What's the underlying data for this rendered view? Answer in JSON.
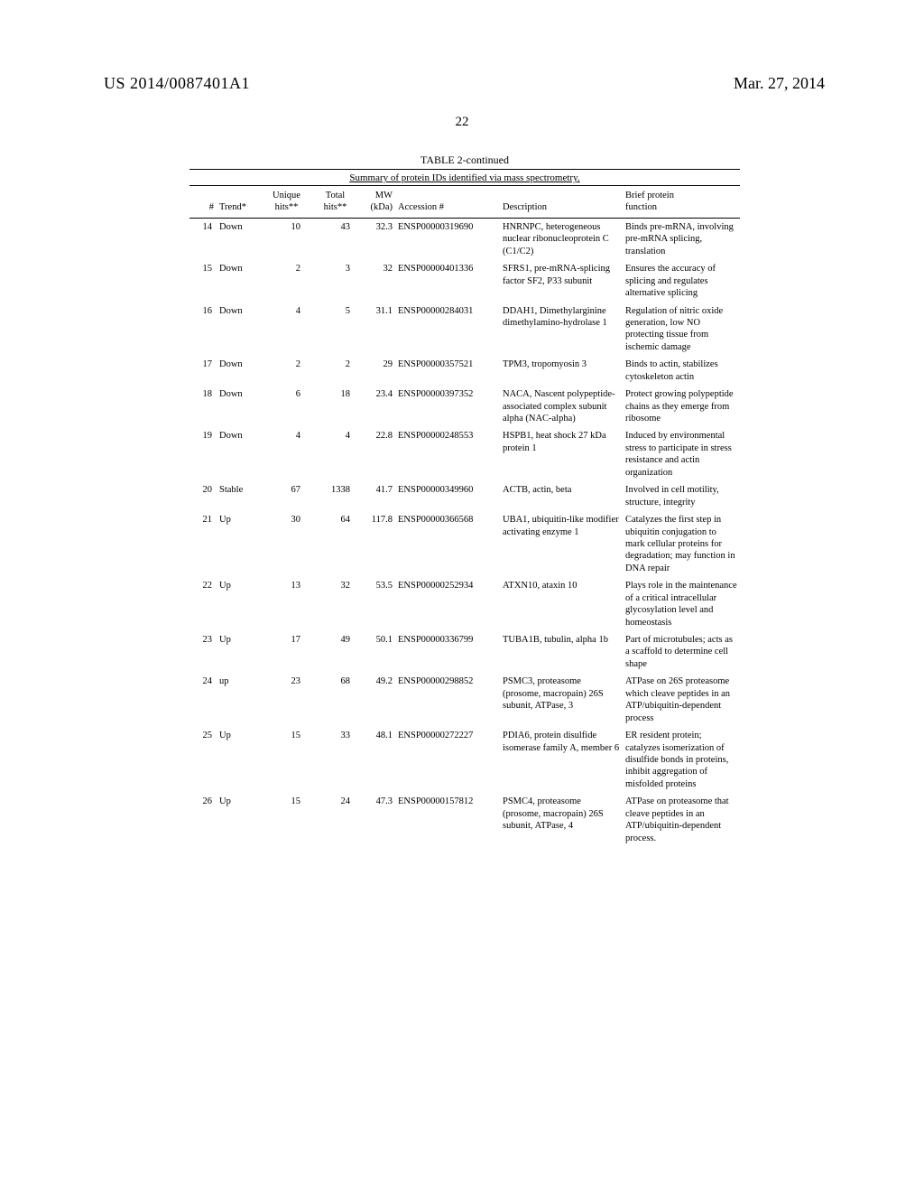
{
  "header": {
    "left": "US 2014/0087401A1",
    "right": "Mar. 27, 2014",
    "page": "22"
  },
  "table": {
    "title": "TABLE 2-continued",
    "subtitle": "Summary of protein IDs identified via mass spectrometry.",
    "columns": {
      "num": "#",
      "trend": "Trend*",
      "unique": "Unique\nhits**",
      "total": "Total\nhits**",
      "mw": "MW\n(kDa)",
      "accession": "Accession #",
      "description": "Description",
      "function": "Brief protein\nfunction"
    },
    "rows": [
      {
        "num": "14",
        "trend": "Down",
        "unique": "10",
        "total": "43",
        "mw": "32.3",
        "accession": "ENSP00000319690",
        "description": "HNRNPC, heterogeneous nuclear ribonucleoprotein C (C1/C2)",
        "function": "Binds pre-mRNA, involving pre-mRNA splicing, translation"
      },
      {
        "num": "15",
        "trend": "Down",
        "unique": "2",
        "total": "3",
        "mw": "32",
        "accession": "ENSP00000401336",
        "description": "SFRS1, pre-mRNA-splicing factor SF2, P33 subunit",
        "function": "Ensures the accuracy of splicing and regulates alternative splicing"
      },
      {
        "num": "16",
        "trend": "Down",
        "unique": "4",
        "total": "5",
        "mw": "31.1",
        "accession": "ENSP00000284031",
        "description": "DDAH1, Dimethylarginine dimethylamino-hydrolase 1",
        "function": "Regulation of nitric oxide generation, low NO protecting tissue from ischemic damage"
      },
      {
        "num": "17",
        "trend": "Down",
        "unique": "2",
        "total": "2",
        "mw": "29",
        "accession": "ENSP00000357521",
        "description": "TPM3, tropomyosin 3",
        "function": "Binds to actin, stabilizes cytoskeleton actin"
      },
      {
        "num": "18",
        "trend": "Down",
        "unique": "6",
        "total": "18",
        "mw": "23.4",
        "accession": "ENSP00000397352",
        "description": "NACA, Nascent polypeptide-associated complex subunit alpha (NAC-alpha)",
        "function": "Protect growing polypeptide chains as they emerge from ribosome"
      },
      {
        "num": "19",
        "trend": "Down",
        "unique": "4",
        "total": "4",
        "mw": "22.8",
        "accession": "ENSP00000248553",
        "description": "HSPB1, heat shock 27 kDa protein 1",
        "function": "Induced by environmental stress to participate in stress resistance and actin organization"
      },
      {
        "num": "20",
        "trend": "Stable",
        "unique": "67",
        "total": "1338",
        "mw": "41.7",
        "accession": "ENSP00000349960",
        "description": "ACTB, actin, beta",
        "function": "Involved in cell motility, structure, integrity"
      },
      {
        "num": "21",
        "trend": "Up",
        "unique": "30",
        "total": "64",
        "mw": "117.8",
        "accession": "ENSP00000366568",
        "description": "UBA1, ubiquitin-like modifier activating enzyme 1",
        "function": "Catalyzes the first step in ubiquitin conjugation to mark cellular proteins for degradation; may function in DNA repair"
      },
      {
        "num": "22",
        "trend": "Up",
        "unique": "13",
        "total": "32",
        "mw": "53.5",
        "accession": "ENSP00000252934",
        "description": "ATXN10, ataxin 10",
        "function": "Plays role in the maintenance of a critical intracellular glycosylation level and homeostasis"
      },
      {
        "num": "23",
        "trend": "Up",
        "unique": "17",
        "total": "49",
        "mw": "50.1",
        "accession": "ENSP00000336799",
        "description": "TUBA1B, tubulin, alpha 1b",
        "function": "Part of microtubules; acts as a scaffold to determine cell shape"
      },
      {
        "num": "24",
        "trend": "up",
        "unique": "23",
        "total": "68",
        "mw": "49.2",
        "accession": "ENSP00000298852",
        "description": "PSMC3, proteasome (prosome, macropain) 26S subunit, ATPase, 3",
        "function": "ATPase on 26S proteasome which cleave peptides in an ATP/ubiquitin-dependent process"
      },
      {
        "num": "25",
        "trend": "Up",
        "unique": "15",
        "total": "33",
        "mw": "48.1",
        "accession": "ENSP00000272227",
        "description": "PDIA6, protein disulfide isomerase family A, member 6",
        "function": "ER resident protein; catalyzes isomerization of disulfide bonds in proteins, inhibit aggregation of misfolded proteins"
      },
      {
        "num": "26",
        "trend": "Up",
        "unique": "15",
        "total": "24",
        "mw": "47.3",
        "accession": "ENSP00000157812",
        "description": "PSMC4, proteasome (prosome, macropain) 26S subunit, ATPase, 4",
        "function": "ATPase on proteasome that cleave peptides in an ATP/ubiquitin-dependent process."
      }
    ]
  }
}
